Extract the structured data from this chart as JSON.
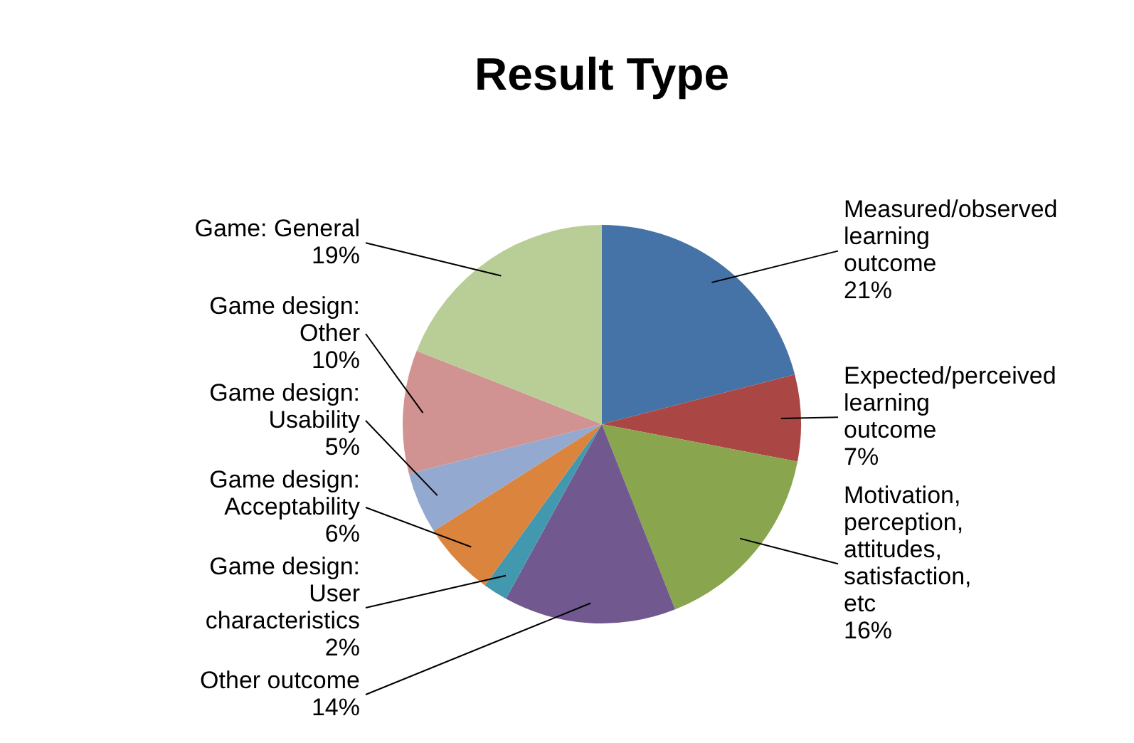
{
  "chart_data": {
    "type": "pie",
    "title": "Result Type",
    "categories": [
      "Measured/observed learning outcome",
      "Expected/perceived learning outcome",
      "Motivation, perception, attitudes, satisfaction, etc",
      "Other outcome",
      "Game design: User characteristics",
      "Game design: Acceptability",
      "Game design: Usability",
      "Game design: Other",
      "Game: General"
    ],
    "values": [
      21,
      7,
      16,
      14,
      2,
      6,
      5,
      10,
      19
    ],
    "value_labels": [
      "21%",
      "7%",
      "16%",
      "14%",
      "2%",
      "6%",
      "5%",
      "10%",
      "19%"
    ],
    "colors": [
      "#4572a7",
      "#aa4643",
      "#89a54e",
      "#71588f",
      "#4198af",
      "#db843d",
      "#93a9cf",
      "#d19392",
      "#b9cd96"
    ]
  }
}
